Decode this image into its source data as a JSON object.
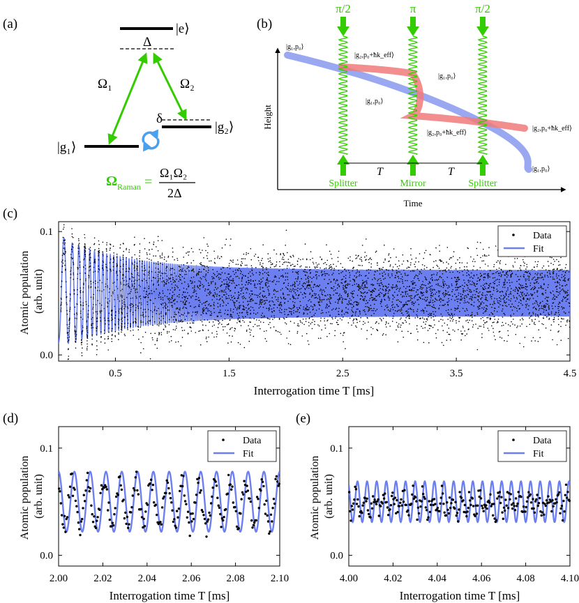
{
  "panel_labels": {
    "a": "(a)",
    "b": "(b)",
    "c": "(c)",
    "d": "(d)",
    "e": "(e)"
  },
  "colors": {
    "green": "#33cc00",
    "fit_blue": "#6c7ff0",
    "beam_blue": "#8898ee",
    "beam_red": "#f07a7a",
    "cycle_blue": "#4aa0ee"
  },
  "panel_a": {
    "state_e": "|e⟩",
    "state_g1": "|g₁⟩",
    "state_g2": "|g₂⟩",
    "delta_big": "Δ",
    "delta_small": "δ",
    "omega1": "Ω₁",
    "omega2": "Ω₂",
    "formula_lhs": "Ω",
    "formula_lhs_sub": "Raman",
    "formula_eq": "=",
    "formula_num": "Ω₁Ω₂",
    "formula_den": "2Δ"
  },
  "panel_b": {
    "pulses": [
      {
        "top": "π/2",
        "bottom": "Splitter"
      },
      {
        "top": "π",
        "bottom": "Mirror"
      },
      {
        "top": "π/2",
        "bottom": "Splitter"
      }
    ],
    "ylabel": "Height",
    "xlabel": "Time",
    "T1": "T",
    "T2": "T",
    "state_labels": [
      "|g₁,p₀⟩",
      "|g₂,p₀+ħk_eff⟩",
      "|g₁,p₀⟩",
      "|g₁,p₀⟩",
      "|g₂,p₀+ħk_eff⟩",
      "|g₂,p₀+ħk_eff⟩",
      "|g₁,p₀⟩"
    ]
  },
  "chart_data": [
    {
      "panel": "c",
      "type": "scatter",
      "xlabel": "Interrogation time T [ms]",
      "ylabel": "Atomic population (arb. unit)",
      "xlim": [
        0.0,
        4.5
      ],
      "ylim": [
        -0.005,
        0.108
      ],
      "xticks": [
        "0.5",
        "1.5",
        "2.5",
        "3.5",
        "4.5"
      ],
      "yticks": [
        "0.0",
        "0.1"
      ],
      "legend": [
        "Data",
        "Fit"
      ],
      "legend_position": "top-right",
      "series": [
        {
          "name": "Fit",
          "kind": "damped_cosine",
          "offset": 0.05,
          "amp0": 0.045,
          "amp_end": 0.019,
          "start_mean": 0.055,
          "freq_start_per_ms": 9.5,
          "chirp_per_ms2": 50.0
        },
        {
          "name": "Data",
          "kind": "points",
          "n": 4500,
          "noise": 0.012
        }
      ]
    },
    {
      "panel": "d",
      "type": "scatter",
      "xlabel": "Interrogation time T [ms]",
      "ylabel": "Atomic population (arb. unit)",
      "xlim": [
        2.0,
        2.1
      ],
      "ylim": [
        -0.01,
        0.12
      ],
      "xticks": [
        "2.00",
        "2.02",
        "2.04",
        "2.06",
        "2.08",
        "2.10"
      ],
      "yticks": [
        "0.0",
        "0.1"
      ],
      "legend": [
        "Data",
        "Fit"
      ],
      "legend_position": "top-right",
      "series": [
        {
          "name": "Fit",
          "kind": "cosine",
          "offset": 0.05,
          "amp": 0.028,
          "freq_per_ms": 140,
          "phase": 0.0
        },
        {
          "name": "Data",
          "kind": "points",
          "n": 240,
          "offset": 0.048,
          "amp": 0.02,
          "freq_per_ms": 140,
          "phase": 0.9,
          "noise": 0.009
        }
      ]
    },
    {
      "panel": "e",
      "type": "scatter",
      "xlabel": "Interrogation time T [ms]",
      "ylabel": "Atomic population (arb. unit)",
      "xlim": [
        4.0,
        4.1
      ],
      "ylim": [
        -0.01,
        0.12
      ],
      "xticks": [
        "4.00",
        "4.02",
        "4.04",
        "4.06",
        "4.08",
        "4.10"
      ],
      "yticks": [
        "0.0",
        "0.1"
      ],
      "legend": [
        "Data",
        "Fit"
      ],
      "legend_position": "top-right",
      "series": [
        {
          "name": "Fit",
          "kind": "cosine",
          "offset": 0.05,
          "amp": 0.019,
          "freq_per_ms": 230,
          "phase": 0.6
        },
        {
          "name": "Data",
          "kind": "points",
          "n": 260,
          "offset": 0.048,
          "amp": 0.008,
          "freq_per_ms": 230,
          "phase": 1.8,
          "noise": 0.009
        }
      ]
    }
  ]
}
